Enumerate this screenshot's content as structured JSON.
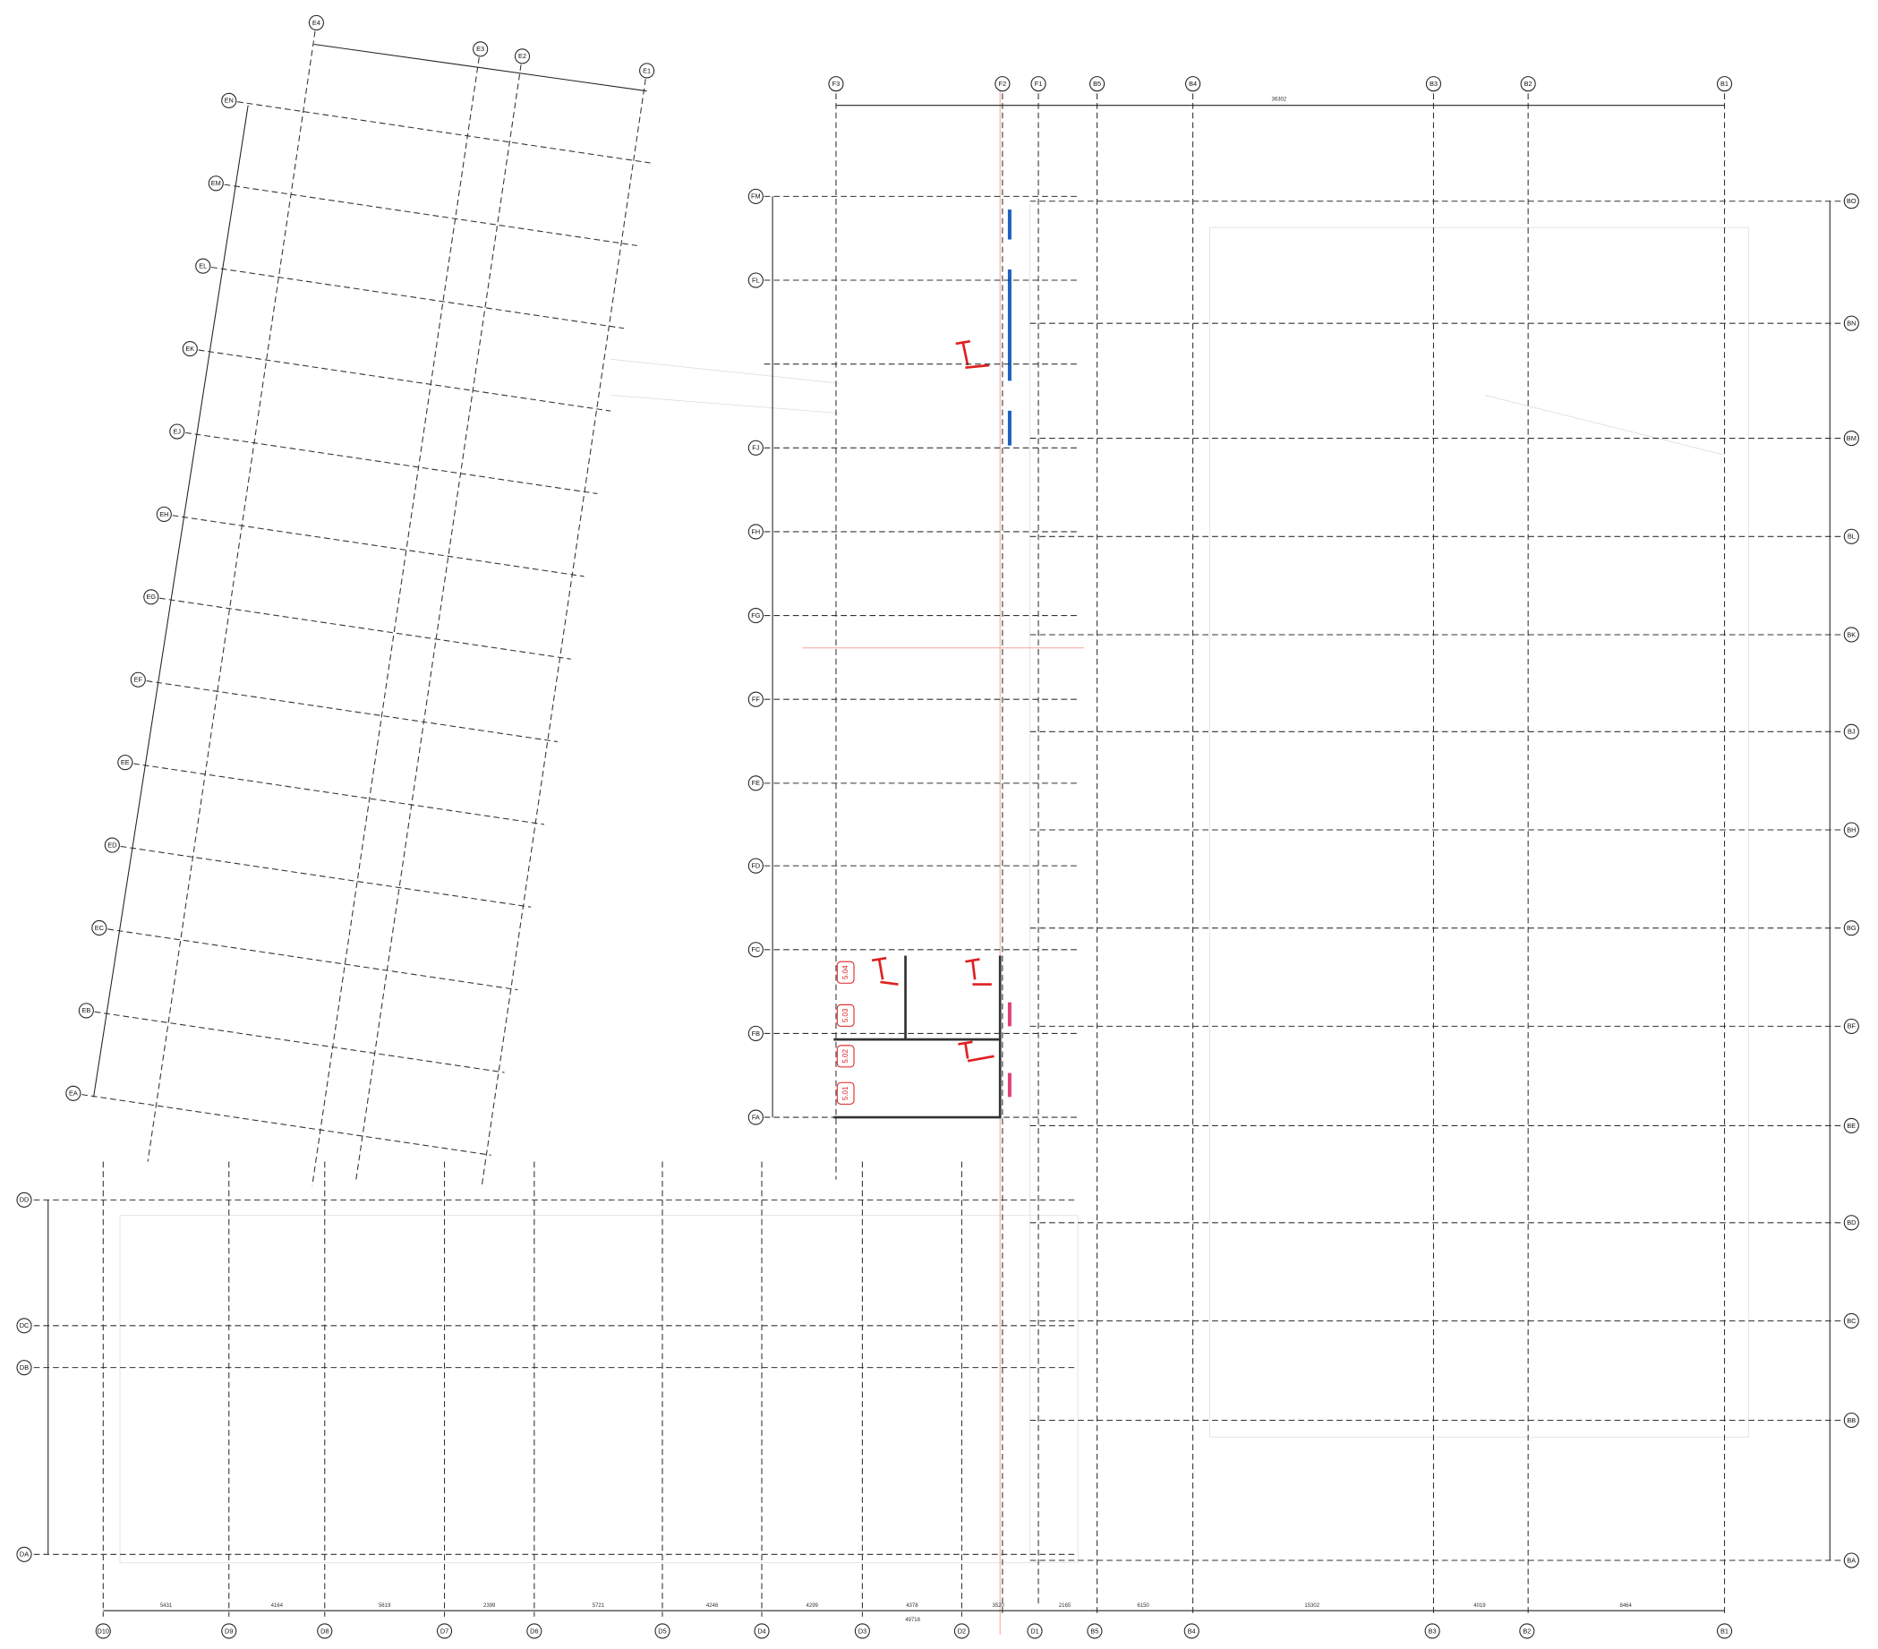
{
  "blocks": {
    "E": {
      "columns": [
        "E4",
        "E3",
        "E2",
        "E1"
      ],
      "rows": [
        "EN",
        "EM",
        "EL",
        "EK",
        "EJ",
        "EH",
        "EG",
        "EF",
        "EE",
        "ED",
        "EC",
        "EB",
        "EA"
      ]
    },
    "F": {
      "columns": [
        "F3",
        "F2",
        "F1"
      ],
      "rows": [
        "FM",
        "FL",
        "FJ",
        "FH",
        "FG",
        "FF",
        "FE",
        "FD",
        "FC",
        "FB",
        "FA"
      ]
    },
    "B": {
      "columns": [
        "B5",
        "B4",
        "B3",
        "B2",
        "B1"
      ],
      "rows": [
        "BO",
        "BN",
        "BM",
        "BL",
        "BK",
        "BJ",
        "BH",
        "BG",
        "BF",
        "BE",
        "BD",
        "BC",
        "BB",
        "BA"
      ]
    },
    "D": {
      "columns": [
        "D10",
        "D9",
        "D8",
        "D7",
        "D6",
        "D5",
        "D4",
        "D3",
        "D2",
        "D1",
        "B5",
        "B4",
        "B3",
        "B2",
        "B1"
      ],
      "rows": [
        "DD",
        "DC",
        "DB",
        "DA"
      ]
    }
  },
  "dimensions": {
    "top_total": "36302",
    "bottom_total": "49718",
    "bottom_segments": [
      "5431",
      "4164",
      "5619",
      "2399",
      "5721",
      "4246",
      "4299",
      "4378",
      "3520",
      "2165",
      "6150",
      "15302",
      "4019",
      "8464"
    ]
  },
  "rooms": [
    "5.04",
    "5.03",
    "5.02",
    "5.01"
  ]
}
